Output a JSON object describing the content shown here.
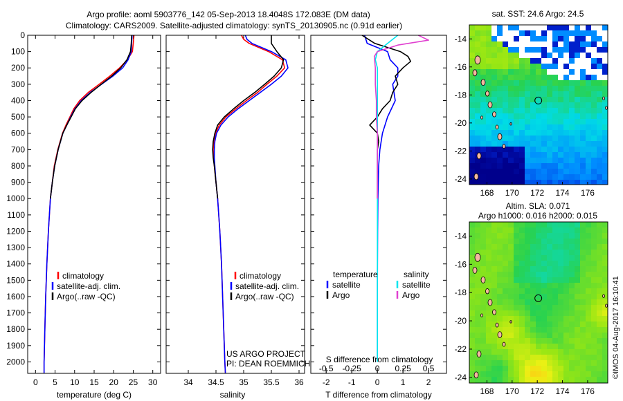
{
  "header": {
    "title_line1": "Argo profile: aoml 5903776_142 05-Sep-2013 18.4048S 172.083E (DM data)",
    "title_line2": "Climatology: CARS2009. Satellite-adjusted climatology: synTS_20130905.nc (0.91d earlier)"
  },
  "colors": {
    "climatology": "#ff0000",
    "satellite": "#0000ff",
    "argo": "#000000",
    "salinity_satellite": "#00e5ee",
    "salinity_argo": "#e040d0"
  },
  "depth_axis": {
    "ticks": [
      "0",
      "100",
      "200",
      "300",
      "400",
      "500",
      "600",
      "700",
      "800",
      "900",
      "1000",
      "1100",
      "1200",
      "1300",
      "1400",
      "1500",
      "1600",
      "1700",
      "1800",
      "1900",
      "2000"
    ]
  },
  "legends": {
    "temperature": [
      "climatology",
      "satellite-adj. clim.",
      "Argo(..raw -QC)"
    ],
    "salinity": [
      "climatology",
      "satellite-adj. clim.",
      "Argo(..raw -QC)"
    ],
    "difference": {
      "temperature_header": "temperature",
      "salinity_header": "salinity",
      "entries": [
        "satellite",
        "Argo",
        "satellite",
        "Argo"
      ]
    }
  },
  "credits": {
    "project": "US ARGO PROJECT",
    "pi": "PI: DEAN ROEMMICH"
  },
  "maps": {
    "sst_title": "sat. SST: 24.6 Argo: 24.5",
    "sla_title1": "Altim. SLA: 0.071",
    "sla_title2": "Argo h1000: 0.016 h2000: 0.015",
    "lat_ticks": [
      "-14",
      "-16",
      "-18",
      "-20",
      "-22",
      "-24"
    ],
    "lon_ticks": [
      "168",
      "170",
      "172",
      "174",
      "176"
    ],
    "stamp": "©IMOS 04-Aug-2017 16:10:41"
  },
  "chart_data": [
    {
      "type": "line",
      "title": "",
      "xlabel": "temperature (deg C)",
      "ylabel": "",
      "xlim": [
        -2,
        32
      ],
      "ylim": [
        2070,
        0
      ],
      "x_ticks": [
        "0",
        "5",
        "10",
        "15",
        "20",
        "25",
        "30"
      ],
      "series": [
        {
          "name": "climatology",
          "depth": [
            0,
            50,
            100,
            150,
            200,
            250,
            300,
            350,
            400,
            450,
            500,
            550,
            600,
            700,
            800,
            900,
            1000,
            1200,
            1400,
            1600,
            1800,
            2000,
            2070
          ],
          "values": [
            25.2,
            25.0,
            24.8,
            23.5,
            21.5,
            19.0,
            16.3,
            13.5,
            11.3,
            9.8,
            8.8,
            7.8,
            6.9,
            5.7,
            4.8,
            4.3,
            3.8,
            3.3,
            2.9,
            2.6,
            2.4,
            2.2,
            2.2
          ]
        },
        {
          "name": "satellite-adj. clim.",
          "depth": [
            0,
            50,
            100,
            150,
            200,
            250,
            300,
            350,
            400,
            450,
            500,
            550,
            600,
            700,
            800,
            900,
            1000,
            1200,
            1400,
            1600,
            1800,
            2000,
            2070
          ],
          "values": [
            24.7,
            24.6,
            24.5,
            23.7,
            22.3,
            19.8,
            16.9,
            14.0,
            11.7,
            10.1,
            9.0,
            8.0,
            7.0,
            5.8,
            4.9,
            4.3,
            3.8,
            3.3,
            2.9,
            2.6,
            2.4,
            2.2,
            2.2
          ]
        },
        {
          "name": "Argo(..raw -QC)",
          "depth": [
            0,
            50,
            100,
            150,
            200,
            250,
            300,
            350,
            400,
            450,
            500,
            550,
            600,
            700,
            800,
            900,
            1000
          ],
          "values": [
            24.6,
            24.5,
            24.3,
            23.4,
            21.8,
            19.5,
            16.8,
            14.2,
            11.9,
            10.2,
            9.1,
            8.0,
            7.0,
            5.8,
            4.9,
            4.3,
            3.8
          ]
        }
      ]
    },
    {
      "type": "line",
      "title": "",
      "xlabel": "salinity",
      "ylabel": "",
      "xlim": [
        33.6,
        36.1
      ],
      "ylim": [
        2070,
        0
      ],
      "x_ticks": [
        "34",
        "34.5",
        "35",
        "35.5",
        "36"
      ],
      "series": [
        {
          "name": "climatology",
          "depth": [
            0,
            25,
            50,
            100,
            150,
            200,
            250,
            300,
            350,
            400,
            450,
            500,
            550,
            600,
            650,
            700,
            750,
            800,
            900,
            1000,
            1200,
            1400,
            1600,
            1800,
            2000,
            2070
          ],
          "values": [
            34.96,
            35.0,
            35.1,
            35.45,
            35.7,
            35.74,
            35.6,
            35.42,
            35.25,
            35.05,
            34.86,
            34.68,
            34.56,
            34.49,
            34.46,
            34.45,
            34.46,
            34.47,
            34.5,
            34.53,
            34.57,
            34.6,
            34.62,
            34.64,
            34.66,
            34.67
          ]
        },
        {
          "name": "satellite-adj. clim.",
          "depth": [
            0,
            25,
            50,
            100,
            150,
            200,
            250,
            300,
            350,
            400,
            450,
            500,
            550,
            600,
            650,
            700,
            750,
            800,
            900,
            1000,
            1200,
            1400,
            1600,
            1800,
            2000,
            2070
          ],
          "values": [
            35.03,
            35.06,
            35.15,
            35.5,
            35.76,
            35.8,
            35.68,
            35.5,
            35.3,
            35.1,
            34.9,
            34.72,
            34.59,
            34.51,
            34.48,
            34.47,
            34.47,
            34.48,
            34.5,
            34.53,
            34.57,
            34.6,
            34.62,
            34.64,
            34.66,
            34.67
          ]
        },
        {
          "name": "Argo(..raw -QC)",
          "depth": [
            0,
            25,
            50,
            100,
            150,
            200,
            250,
            300,
            350,
            400,
            450,
            500,
            550,
            600,
            650,
            700,
            750,
            800,
            900,
            1000
          ],
          "values": [
            35.5,
            35.5,
            35.5,
            35.6,
            35.72,
            35.68,
            35.55,
            35.38,
            35.2,
            35.0,
            34.82,
            34.65,
            34.53,
            34.48,
            34.45,
            34.44,
            34.45,
            34.47,
            34.5,
            34.53
          ]
        }
      ]
    },
    {
      "type": "line",
      "title": "",
      "xlabel": "T difference from climatology",
      "x2label": "S difference from climatology",
      "ylabel": "",
      "xlim": [
        -2.6,
        2.7
      ],
      "ylim": [
        2070,
        0
      ],
      "x_ticks": [
        "-2",
        "-1",
        "0",
        "1",
        "2"
      ],
      "x2_ticks": [
        "-0.5",
        "-0.25",
        "0",
        "0.25",
        "0.5"
      ],
      "series": [
        {
          "name": "temperature satellite",
          "depth": [
            0,
            50,
            100,
            150,
            200,
            250,
            300,
            400,
            500,
            600,
            700,
            800,
            1000,
            1200,
            1500,
            2000
          ],
          "values": [
            -0.5,
            -0.4,
            0.4,
            0.5,
            0.8,
            0.8,
            0.6,
            0.7,
            0.4,
            0.2,
            0.1,
            0.05,
            0.02,
            0.01,
            0.0,
            0.0
          ]
        },
        {
          "name": "temperature Argo",
          "depth": [
            0,
            50,
            100,
            130,
            160,
            200,
            250,
            300,
            350,
            400,
            450,
            500,
            550,
            600,
            650,
            700,
            800,
            900,
            1000
          ],
          "values": [
            -0.6,
            -0.1,
            0.9,
            1.2,
            1.3,
            1.0,
            0.7,
            0.8,
            0.6,
            0.5,
            0.2,
            0.0,
            -0.3,
            0.0,
            0.05,
            0.0,
            0.0,
            0.0,
            0.0
          ]
        },
        {
          "name": "salinity satellite",
          "depth": [
            0,
            50,
            100,
            150,
            200,
            300,
            400,
            500,
            600,
            700,
            800,
            1000,
            1200,
            1500,
            2000
          ],
          "values": [
            0.2,
            0.1,
            0.0,
            -0.02,
            0.0,
            0.0,
            0.0,
            0.0,
            0.0,
            0.0,
            0.0,
            0.0,
            0.0,
            0.0,
            0.0
          ]
        },
        {
          "name": "salinity Argo",
          "depth": [
            0,
            30,
            60,
            100,
            130,
            200,
            300,
            400,
            500,
            600,
            700,
            800,
            1000
          ],
          "values": [
            0.4,
            0.5,
            0.2,
            0.0,
            -0.03,
            -0.02,
            -0.02,
            -0.01,
            -0.01,
            0.0,
            0.0,
            0.0,
            0.0
          ]
        }
      ]
    },
    {
      "type": "heatmap",
      "title": "sat. SST: 24.6 Argo: 24.5",
      "xlim": [
        166.6,
        177.6
      ],
      "ylim": [
        -24.4,
        -13.0
      ],
      "x_ticks": [
        "168",
        "170",
        "172",
        "174",
        "176"
      ],
      "y_ticks": [
        "-14",
        "-16",
        "-18",
        "-20",
        "-22",
        "-24"
      ],
      "marker": {
        "lon": 172.08,
        "lat": -18.4
      }
    },
    {
      "type": "heatmap",
      "title": "Altim. SLA: 0.071",
      "xlim": [
        166.6,
        177.6
      ],
      "ylim": [
        -24.4,
        -13.0
      ],
      "x_ticks": [
        "168",
        "170",
        "172",
        "174",
        "176"
      ],
      "y_ticks": [
        "-14",
        "-16",
        "-18",
        "-20",
        "-22",
        "-24"
      ],
      "marker": {
        "lon": 172.08,
        "lat": -18.4
      }
    }
  ]
}
